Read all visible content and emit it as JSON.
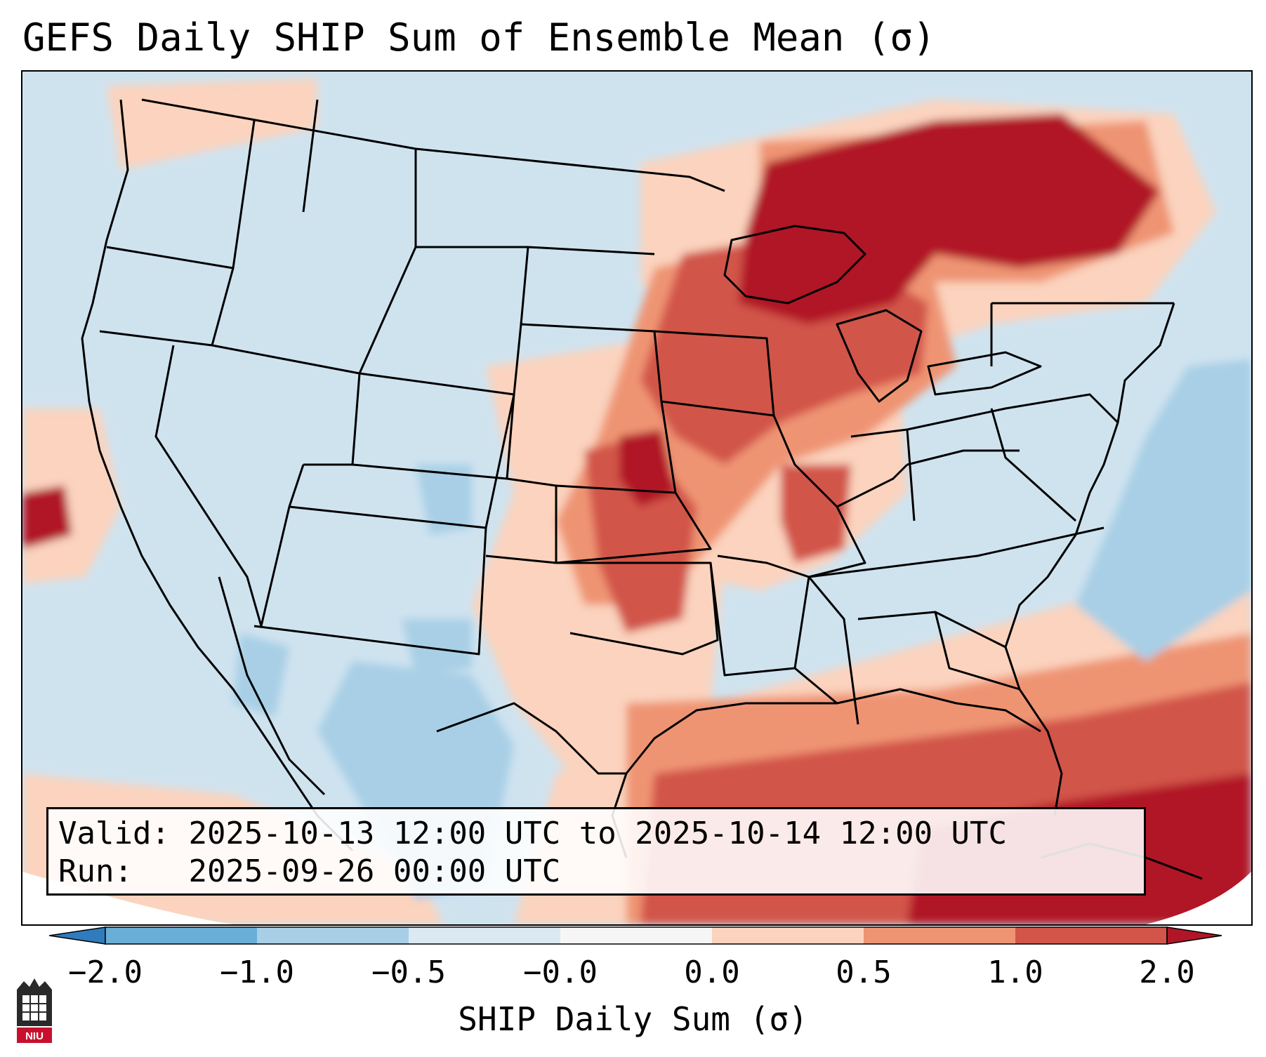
{
  "title": "GEFS Daily SHIP Sum of Ensemble Mean (σ)",
  "info": {
    "valid_label": "Valid:",
    "valid_value": "2025-10-13 12:00 UTC to 2025-10-14 12:00 UTC",
    "run_label": "Run:",
    "run_value": "2025-09-26 00:00 UTC"
  },
  "colorbar": {
    "label": "SHIP Daily Sum (σ)",
    "ticks": [
      "−2.0",
      "−1.0",
      "−0.5",
      "−0.0",
      "0.0",
      "0.5",
      "1.0",
      "2.0"
    ],
    "colors": [
      "#2f7bbc",
      "#6aaed6",
      "#a8cfe6",
      "#dbe9f3",
      "#f6f6f6",
      "#fbd3be",
      "#ef9473",
      "#d2554a",
      "#b11528"
    ],
    "extend": "both"
  },
  "map": {
    "region": "CONUS",
    "land_color": "#cfe3ef",
    "positive_areas": [
      "Upper Midwest",
      "Great Lakes",
      "Ontario/Quebec",
      "Central Plains",
      "Gulf of Mexico",
      "Caribbean",
      "Texas"
    ],
    "negative_areas": [
      "Western Atlantic",
      "Northern Mexico",
      "Colorado/New Mexico"
    ]
  },
  "logo": {
    "text": "NIU"
  }
}
